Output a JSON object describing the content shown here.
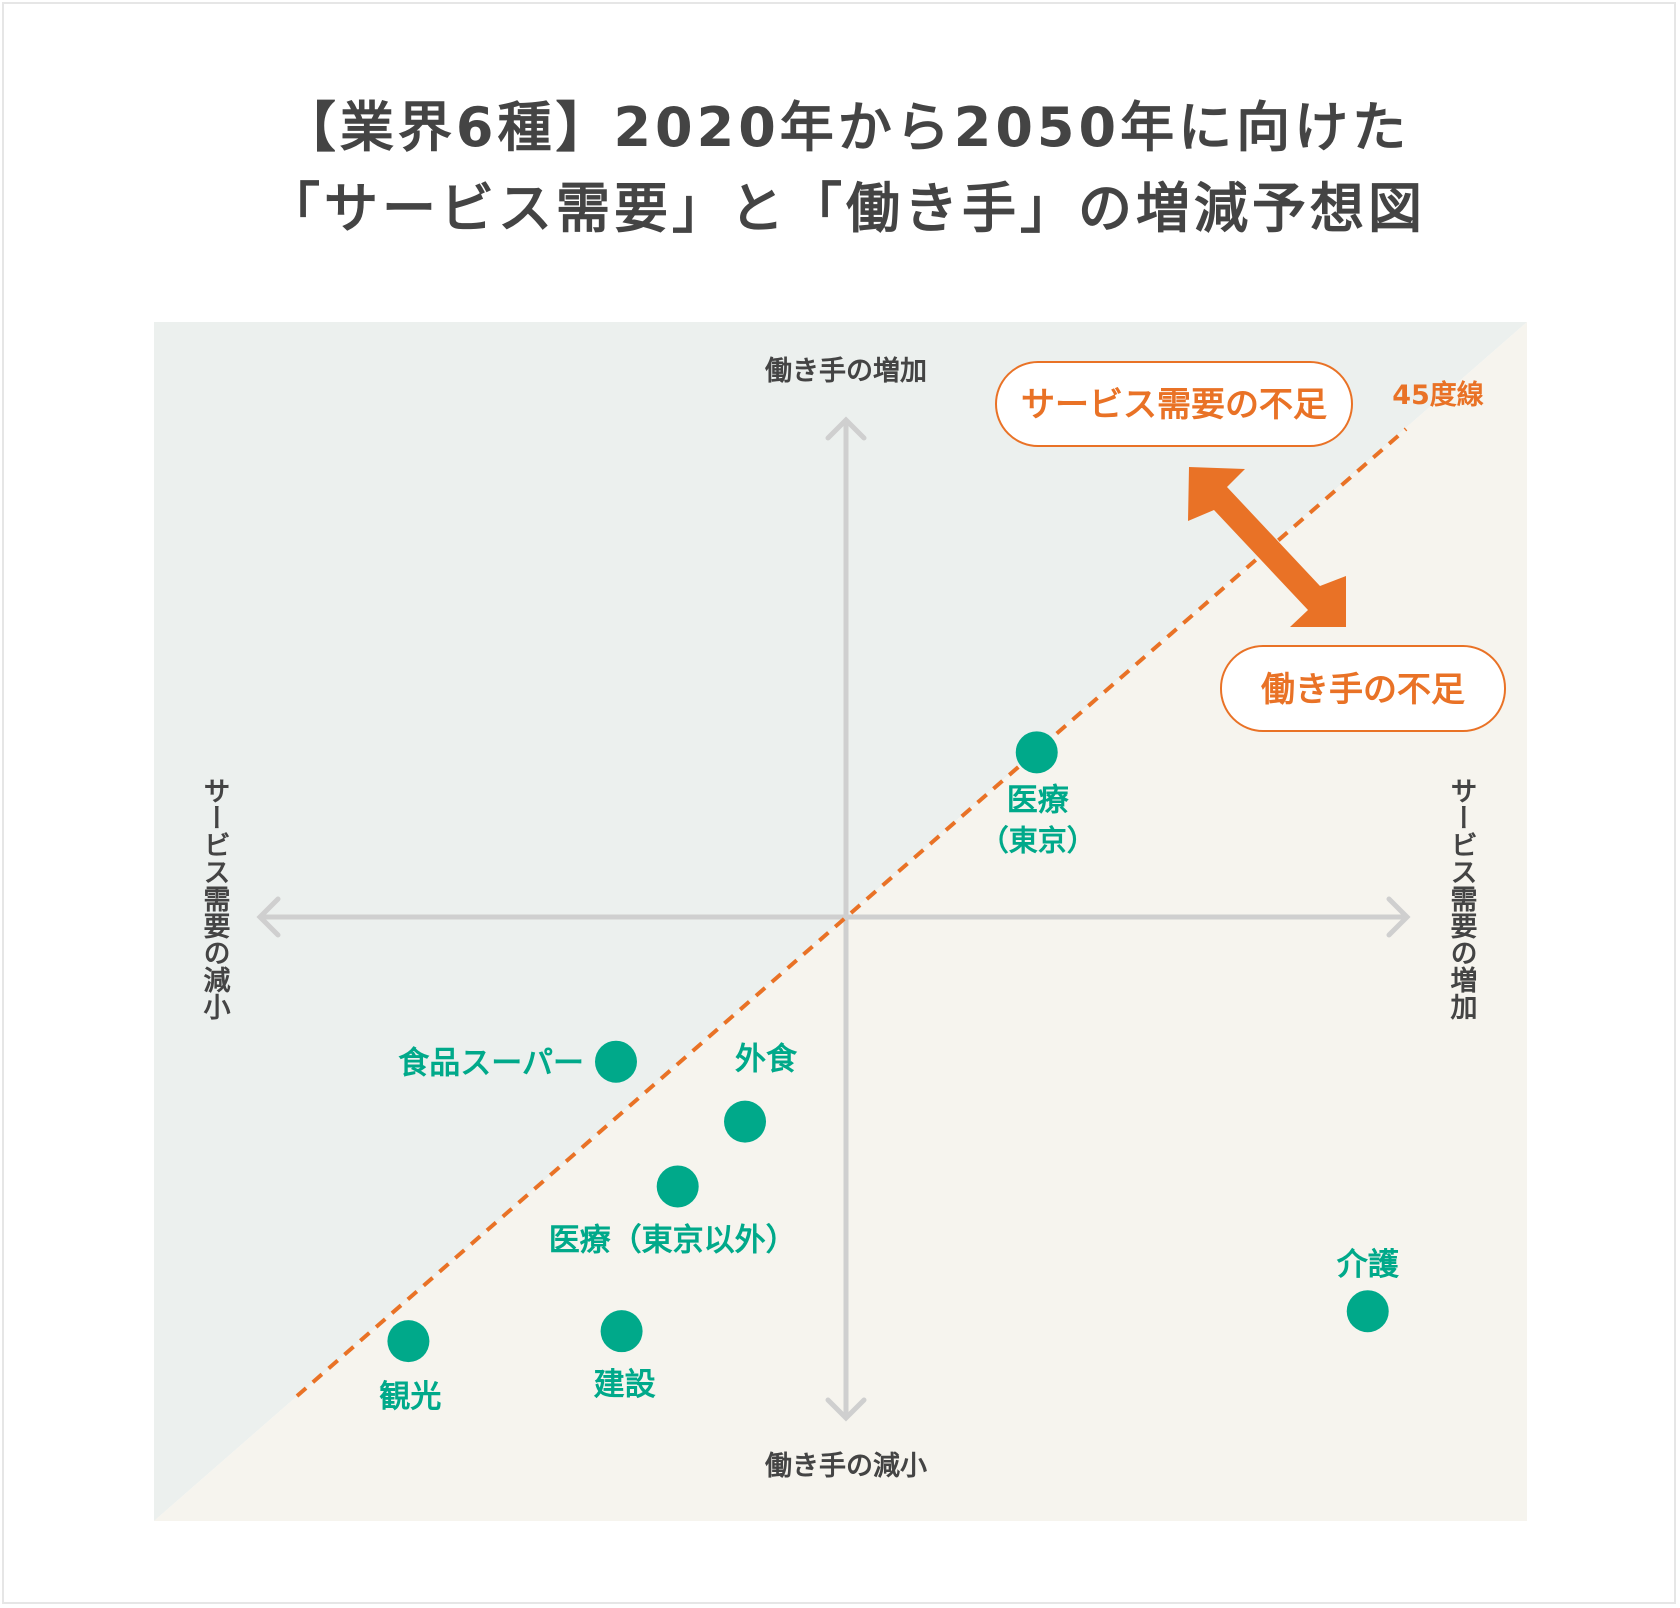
{
  "title": {
    "line1": "【業界6種】2020年から2050年に向けた",
    "line2": "「サービス需要」と「働き手」の増減予想図"
  },
  "colors": {
    "upper_region": "#ecf0ee",
    "lower_region": "#f6f4ee",
    "point": "#00a98a",
    "accent": "#e97226",
    "axis": "#cfcfcf",
    "text": "#444444"
  },
  "chart_data": {
    "type": "scatter",
    "xlabel_positive": "サービス需要の増加",
    "xlabel_negative": "サービス需要の減小",
    "ylabel_positive": "働き手の増加",
    "ylabel_negative": "働き手の減小",
    "xlim": [
      -1,
      1
    ],
    "ylim": [
      -1,
      1
    ],
    "grid": false,
    "reference_line": {
      "label": "45度線",
      "style": "dashed"
    },
    "callouts": {
      "upper": "サービス需要の不足",
      "lower": "働き手の不足"
    },
    "points": [
      {
        "label": "医療",
        "label2": "（東京）",
        "x": 0.34,
        "y": 0.33
      },
      {
        "label": "食品スーパー",
        "x": -0.41,
        "y": -0.29
      },
      {
        "label": "外食",
        "x": -0.18,
        "y": -0.41
      },
      {
        "label": "医療（東京以外）",
        "x": -0.3,
        "y": -0.54
      },
      {
        "label": "観光",
        "x": -0.78,
        "y": -0.85
      },
      {
        "label": "建設",
        "x": -0.4,
        "y": -0.83
      },
      {
        "label": "介護",
        "x": 0.93,
        "y": -0.79
      }
    ]
  }
}
